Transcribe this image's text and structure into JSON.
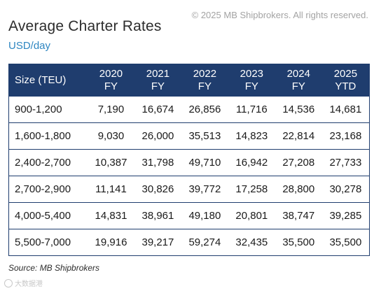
{
  "copyright": "© 2025 MB Shipbrokers. All rights reserved.",
  "title": "Average Charter Rates",
  "subtitle": "USD/day",
  "table": {
    "header": {
      "size": "Size (TEU)",
      "columns": [
        {
          "year": "2020",
          "period": "FY"
        },
        {
          "year": "2021",
          "period": "FY"
        },
        {
          "year": "2022",
          "period": "FY"
        },
        {
          "year": "2023",
          "period": "FY"
        },
        {
          "year": "2024",
          "period": "FY"
        },
        {
          "year": "2025",
          "period": "YTD"
        }
      ]
    },
    "rows": [
      {
        "size": "900-1,200",
        "values": [
          "7,190",
          "16,674",
          "26,856",
          "11,716",
          "14,536",
          "14,681"
        ]
      },
      {
        "size": "1,600-1,800",
        "values": [
          "9,030",
          "26,000",
          "35,513",
          "14,823",
          "22,814",
          "23,168"
        ]
      },
      {
        "size": "2,400-2,700",
        "values": [
          "10,387",
          "31,798",
          "49,710",
          "16,942",
          "27,208",
          "27,733"
        ]
      },
      {
        "size": "2,700-2,900",
        "values": [
          "11,141",
          "30,826",
          "39,772",
          "17,258",
          "28,800",
          "30,278"
        ]
      },
      {
        "size": "4,000-5,400",
        "values": [
          "14,831",
          "38,961",
          "49,180",
          "20,801",
          "38,747",
          "39,285"
        ]
      },
      {
        "size": "5,500-7,000",
        "values": [
          "19,916",
          "39,217",
          "59,274",
          "32,435",
          "35,500",
          "35,500"
        ]
      }
    ]
  },
  "source": "Source: MB Shipbrokers",
  "watermark": "大数据港",
  "colors": {
    "header_bg": "#1f3d6e",
    "subtitle": "#2e86c1",
    "copyright": "#a3a3a3"
  }
}
